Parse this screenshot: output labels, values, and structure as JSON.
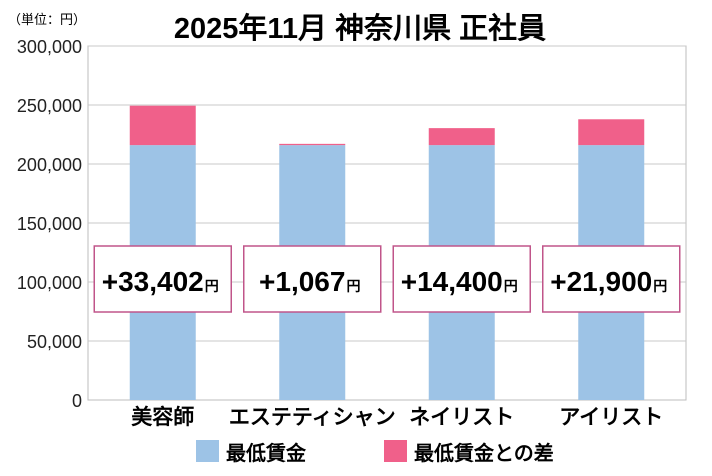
{
  "chart_data": {
    "type": "bar",
    "title": "2025年11月 神奈川県 正社員",
    "unit_label": "（単位：円）",
    "categories": [
      "美容師",
      "エステティシャン",
      "ネイリスト",
      "アイリスト"
    ],
    "series": [
      {
        "name": "最低賃金",
        "color": "#9dc3e6",
        "values": [
          216000,
          216000,
          216000,
          216000
        ]
      },
      {
        "name": "最低賃金との差",
        "color": "#f0608a",
        "values": [
          33402,
          1067,
          14400,
          21900
        ]
      }
    ],
    "diff_labels": [
      "+33,402",
      "+1,067",
      "+14,400",
      "+21,900"
    ],
    "diff_unit": "円",
    "ylim": [
      0,
      300000
    ],
    "yticks": [
      "0",
      "50,000",
      "100,000",
      "150,000",
      "200,000",
      "250,000",
      "300,000"
    ],
    "ytick_values": [
      0,
      50000,
      100000,
      150000,
      200000,
      250000,
      300000
    ],
    "grid": true,
    "legend_position": "bottom",
    "box_border_color": "#c0558a"
  }
}
